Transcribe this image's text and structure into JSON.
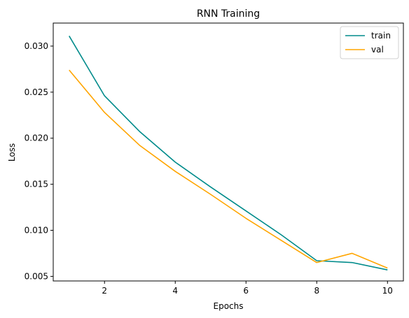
{
  "chart_data": {
    "type": "line",
    "title": "RNN Training",
    "xlabel": "Epochs",
    "ylabel": "Loss",
    "x": [
      1,
      2,
      3,
      4,
      5,
      6,
      7,
      8,
      9,
      10
    ],
    "xlim": [
      0.55,
      10.45
    ],
    "ylim": [
      0.0045,
      0.0325
    ],
    "xticks": [
      2,
      4,
      6,
      8,
      10
    ],
    "yticks": [
      0.005,
      0.01,
      0.015,
      0.02,
      0.025,
      0.03
    ],
    "xtick_labels": [
      "2",
      "4",
      "6",
      "8",
      "10"
    ],
    "ytick_labels": [
      "0.005",
      "0.010",
      "0.015",
      "0.020",
      "0.025",
      "0.030"
    ],
    "grid": false,
    "legend_position": "top-right",
    "series": [
      {
        "name": "train",
        "color": "#008b8b",
        "values": [
          0.0311,
          0.0246,
          0.0207,
          0.0174,
          0.0147,
          0.0121,
          0.0095,
          0.0067,
          0.0065,
          0.0057
        ]
      },
      {
        "name": "val",
        "color": "#ffa500",
        "values": [
          0.0274,
          0.0228,
          0.0192,
          0.0164,
          0.0139,
          0.0113,
          0.0089,
          0.0065,
          0.0075,
          0.0059
        ]
      }
    ]
  }
}
